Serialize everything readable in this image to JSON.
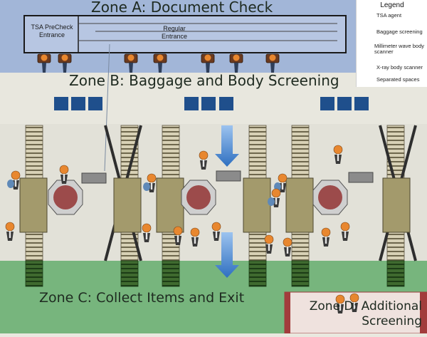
{
  "zones": {
    "a": "Zone A: Document Check",
    "b": "Zone B: Baggage and Body Screening",
    "c": "Zone C: Collect Items and Exit",
    "d": "Zone D: Additional Screening"
  },
  "entrances": {
    "precheck": "TSA PreCheck Entrance",
    "regular": "Regular Entrance"
  },
  "legend": {
    "title": "Legend",
    "items": [
      {
        "label": "TSA agent",
        "icon": "agent-icon"
      },
      {
        "label": "Baggage screening",
        "icon": "baggage-screening-icon"
      },
      {
        "label": "Millimeter wave body scanner",
        "icon": "millimeter-wave-icon"
      },
      {
        "label": "X-ray body scanner",
        "icon": "xray-scanner-icon"
      },
      {
        "label": "Separated spaces",
        "icon": "separated-space-icon"
      }
    ]
  },
  "colors": {
    "zone_a": "#9fb3d6",
    "zone_c": "#74b37a",
    "zone_d": "#f1e3e0",
    "agent": "#e8872f",
    "baggage": "#a39a6c",
    "mmw": "#9c4b4b",
    "xray": "#8b8b8b",
    "space": "#1f4f8c",
    "arrow": "#3a78c7"
  }
}
